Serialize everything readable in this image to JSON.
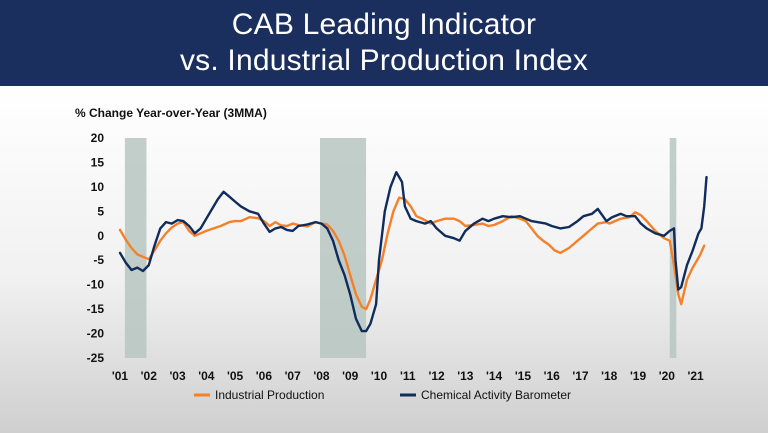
{
  "header": {
    "title_line1": "CAB Leading Indicator",
    "title_line2": "vs. Industrial Production Index"
  },
  "colors": {
    "header_bg": "#1b2f5e",
    "industrial": "#f4812a",
    "cab": "#0f2c5c",
    "recession": "#b7c6c0"
  },
  "chart_data": {
    "type": "line",
    "ylabel": "% Change Year-over-Year (3MMA)",
    "ylim": [
      -25,
      20
    ],
    "yticks": [
      -25,
      -20,
      -15,
      -10,
      -5,
      0,
      5,
      10,
      15,
      20
    ],
    "xlim": [
      2001.0,
      2021.5
    ],
    "xticks": [
      {
        "label": "'01",
        "x": 2001.0
      },
      {
        "label": "'02",
        "x": 2002.0
      },
      {
        "label": "'03",
        "x": 2003.0
      },
      {
        "label": "'04",
        "x": 2004.0
      },
      {
        "label": "'05",
        "x": 2005.0
      },
      {
        "label": "'06",
        "x": 2006.0
      },
      {
        "label": "'07",
        "x": 2007.0
      },
      {
        "label": "'08",
        "x": 2008.0
      },
      {
        "label": "'09",
        "x": 2009.0
      },
      {
        "label": "'10",
        "x": 2010.0
      },
      {
        "label": "'11",
        "x": 2011.0
      },
      {
        "label": "'12",
        "x": 2012.0
      },
      {
        "label": "'13",
        "x": 2013.0
      },
      {
        "label": "'14",
        "x": 2014.0
      },
      {
        "label": "'15",
        "x": 2015.0
      },
      {
        "label": "'16",
        "x": 2016.0
      },
      {
        "label": "'17",
        "x": 2017.0
      },
      {
        "label": "'18",
        "x": 2018.0
      },
      {
        "label": "'19",
        "x": 2019.0
      },
      {
        "label": "'20",
        "x": 2020.0
      },
      {
        "label": "'21",
        "x": 2021.0
      }
    ],
    "recessions": [
      {
        "start": 2001.17,
        "end": 2001.92
      },
      {
        "start": 2007.95,
        "end": 2009.55
      },
      {
        "start": 2020.1,
        "end": 2020.33
      }
    ],
    "legend_position": "bottom",
    "series": [
      {
        "name": "Industrial Production",
        "color": "#f4812a",
        "points": [
          [
            2001.0,
            1.2
          ],
          [
            2001.2,
            -0.8
          ],
          [
            2001.4,
            -2.5
          ],
          [
            2001.6,
            -3.8
          ],
          [
            2001.8,
            -4.3
          ],
          [
            2002.0,
            -4.8
          ],
          [
            2002.2,
            -3.0
          ],
          [
            2002.4,
            -1.0
          ],
          [
            2002.6,
            0.5
          ],
          [
            2002.8,
            1.7
          ],
          [
            2003.0,
            2.5
          ],
          [
            2003.2,
            2.8
          ],
          [
            2003.4,
            1.0
          ],
          [
            2003.6,
            0.0
          ],
          [
            2003.8,
            0.5
          ],
          [
            2004.0,
            1.0
          ],
          [
            2004.2,
            1.4
          ],
          [
            2004.5,
            2.0
          ],
          [
            2004.8,
            2.8
          ],
          [
            2005.0,
            3.0
          ],
          [
            2005.2,
            3.0
          ],
          [
            2005.5,
            3.8
          ],
          [
            2005.8,
            3.6
          ],
          [
            2006.0,
            3.0
          ],
          [
            2006.2,
            2.0
          ],
          [
            2006.4,
            2.8
          ],
          [
            2006.6,
            2.1
          ],
          [
            2006.8,
            2.0
          ],
          [
            2007.0,
            2.5
          ],
          [
            2007.2,
            2.2
          ],
          [
            2007.5,
            1.9
          ],
          [
            2007.8,
            2.8
          ],
          [
            2008.0,
            2.5
          ],
          [
            2008.2,
            2.3
          ],
          [
            2008.4,
            1.0
          ],
          [
            2008.6,
            -1.0
          ],
          [
            2008.8,
            -4.0
          ],
          [
            2009.0,
            -8.0
          ],
          [
            2009.2,
            -12.0
          ],
          [
            2009.4,
            -14.5
          ],
          [
            2009.55,
            -15.0
          ],
          [
            2009.7,
            -13.0
          ],
          [
            2009.9,
            -9.0
          ],
          [
            2010.1,
            -5.0
          ],
          [
            2010.3,
            0.5
          ],
          [
            2010.5,
            5.0
          ],
          [
            2010.7,
            7.8
          ],
          [
            2010.9,
            7.5
          ],
          [
            2011.1,
            6.0
          ],
          [
            2011.3,
            4.0
          ],
          [
            2011.5,
            3.5
          ],
          [
            2011.8,
            2.5
          ],
          [
            2012.0,
            3.0
          ],
          [
            2012.3,
            3.5
          ],
          [
            2012.6,
            3.5
          ],
          [
            2012.8,
            3.0
          ],
          [
            2013.0,
            2.0
          ],
          [
            2013.3,
            2.2
          ],
          [
            2013.6,
            2.5
          ],
          [
            2013.8,
            2.0
          ],
          [
            2014.0,
            2.2
          ],
          [
            2014.3,
            3.0
          ],
          [
            2014.6,
            4.0
          ],
          [
            2014.9,
            3.5
          ],
          [
            2015.1,
            3.0
          ],
          [
            2015.3,
            1.5
          ],
          [
            2015.5,
            0.0
          ],
          [
            2015.7,
            -1.0
          ],
          [
            2015.9,
            -1.8
          ],
          [
            2016.1,
            -3.0
          ],
          [
            2016.3,
            -3.5
          ],
          [
            2016.6,
            -2.5
          ],
          [
            2016.9,
            -1.0
          ],
          [
            2017.1,
            0.0
          ],
          [
            2017.3,
            1.0
          ],
          [
            2017.6,
            2.5
          ],
          [
            2017.9,
            2.8
          ],
          [
            2018.0,
            2.5
          ],
          [
            2018.2,
            3.0
          ],
          [
            2018.4,
            3.5
          ],
          [
            2018.7,
            3.8
          ],
          [
            2018.9,
            4.8
          ],
          [
            2019.1,
            4.2
          ],
          [
            2019.3,
            3.0
          ],
          [
            2019.6,
            1.0
          ],
          [
            2019.9,
            -0.5
          ],
          [
            2020.1,
            -1.0
          ],
          [
            2020.25,
            -6.0
          ],
          [
            2020.4,
            -12.0
          ],
          [
            2020.5,
            -14.0
          ],
          [
            2020.7,
            -9.0
          ],
          [
            2020.9,
            -6.5
          ],
          [
            2021.0,
            -5.5
          ],
          [
            2021.15,
            -4.0
          ],
          [
            2021.3,
            -2.0
          ]
        ]
      },
      {
        "name": "Chemical Activity Barometer",
        "color": "#0f2c5c",
        "points": [
          [
            2001.0,
            -3.5
          ],
          [
            2001.2,
            -5.5
          ],
          [
            2001.4,
            -7.0
          ],
          [
            2001.6,
            -6.5
          ],
          [
            2001.8,
            -7.2
          ],
          [
            2002.0,
            -6.0
          ],
          [
            2002.2,
            -2.0
          ],
          [
            2002.4,
            1.5
          ],
          [
            2002.6,
            2.8
          ],
          [
            2002.8,
            2.5
          ],
          [
            2003.0,
            3.2
          ],
          [
            2003.2,
            3.0
          ],
          [
            2003.4,
            2.0
          ],
          [
            2003.6,
            0.5
          ],
          [
            2003.8,
            1.5
          ],
          [
            2004.0,
            3.5
          ],
          [
            2004.2,
            5.5
          ],
          [
            2004.4,
            7.5
          ],
          [
            2004.6,
            9.0
          ],
          [
            2004.8,
            8.0
          ],
          [
            2005.0,
            7.0
          ],
          [
            2005.2,
            6.0
          ],
          [
            2005.5,
            5.0
          ],
          [
            2005.8,
            4.5
          ],
          [
            2006.0,
            2.5
          ],
          [
            2006.2,
            0.8
          ],
          [
            2006.4,
            1.5
          ],
          [
            2006.6,
            1.8
          ],
          [
            2006.8,
            1.2
          ],
          [
            2007.0,
            1.0
          ],
          [
            2007.2,
            2.0
          ],
          [
            2007.5,
            2.3
          ],
          [
            2007.8,
            2.8
          ],
          [
            2008.0,
            2.5
          ],
          [
            2008.2,
            1.5
          ],
          [
            2008.4,
            -1.0
          ],
          [
            2008.6,
            -5.0
          ],
          [
            2008.8,
            -8.0
          ],
          [
            2009.0,
            -12.0
          ],
          [
            2009.2,
            -17.0
          ],
          [
            2009.4,
            -19.5
          ],
          [
            2009.55,
            -19.5
          ],
          [
            2009.7,
            -18.0
          ],
          [
            2009.9,
            -14.0
          ],
          [
            2010.0,
            -5.0
          ],
          [
            2010.2,
            5.0
          ],
          [
            2010.4,
            10.0
          ],
          [
            2010.6,
            13.0
          ],
          [
            2010.8,
            11.0
          ],
          [
            2010.9,
            6.0
          ],
          [
            2011.1,
            3.5
          ],
          [
            2011.3,
            3.0
          ],
          [
            2011.6,
            2.5
          ],
          [
            2011.8,
            3.0
          ],
          [
            2012.0,
            1.5
          ],
          [
            2012.3,
            0.0
          ],
          [
            2012.6,
            -0.5
          ],
          [
            2012.8,
            -1.0
          ],
          [
            2013.0,
            1.0
          ],
          [
            2013.3,
            2.5
          ],
          [
            2013.6,
            3.5
          ],
          [
            2013.8,
            3.0
          ],
          [
            2014.0,
            3.5
          ],
          [
            2014.3,
            4.0
          ],
          [
            2014.6,
            3.8
          ],
          [
            2014.9,
            4.0
          ],
          [
            2015.1,
            3.5
          ],
          [
            2015.3,
            3.0
          ],
          [
            2015.5,
            2.8
          ],
          [
            2015.8,
            2.5
          ],
          [
            2016.0,
            2.0
          ],
          [
            2016.3,
            1.5
          ],
          [
            2016.6,
            1.8
          ],
          [
            2016.9,
            3.0
          ],
          [
            2017.1,
            4.0
          ],
          [
            2017.4,
            4.5
          ],
          [
            2017.6,
            5.5
          ],
          [
            2017.9,
            3.0
          ],
          [
            2018.1,
            3.8
          ],
          [
            2018.4,
            4.5
          ],
          [
            2018.6,
            4.0
          ],
          [
            2018.9,
            4.0
          ],
          [
            2019.1,
            2.5
          ],
          [
            2019.3,
            1.5
          ],
          [
            2019.6,
            0.5
          ],
          [
            2019.9,
            0.0
          ],
          [
            2020.1,
            1.0
          ],
          [
            2020.25,
            1.5
          ],
          [
            2020.3,
            -5.0
          ],
          [
            2020.4,
            -11.0
          ],
          [
            2020.5,
            -10.5
          ],
          [
            2020.7,
            -6.0
          ],
          [
            2020.9,
            -3.0
          ],
          [
            2021.1,
            0.5
          ],
          [
            2021.2,
            1.5
          ],
          [
            2021.3,
            6.0
          ],
          [
            2021.38,
            12.0
          ]
        ]
      }
    ]
  }
}
